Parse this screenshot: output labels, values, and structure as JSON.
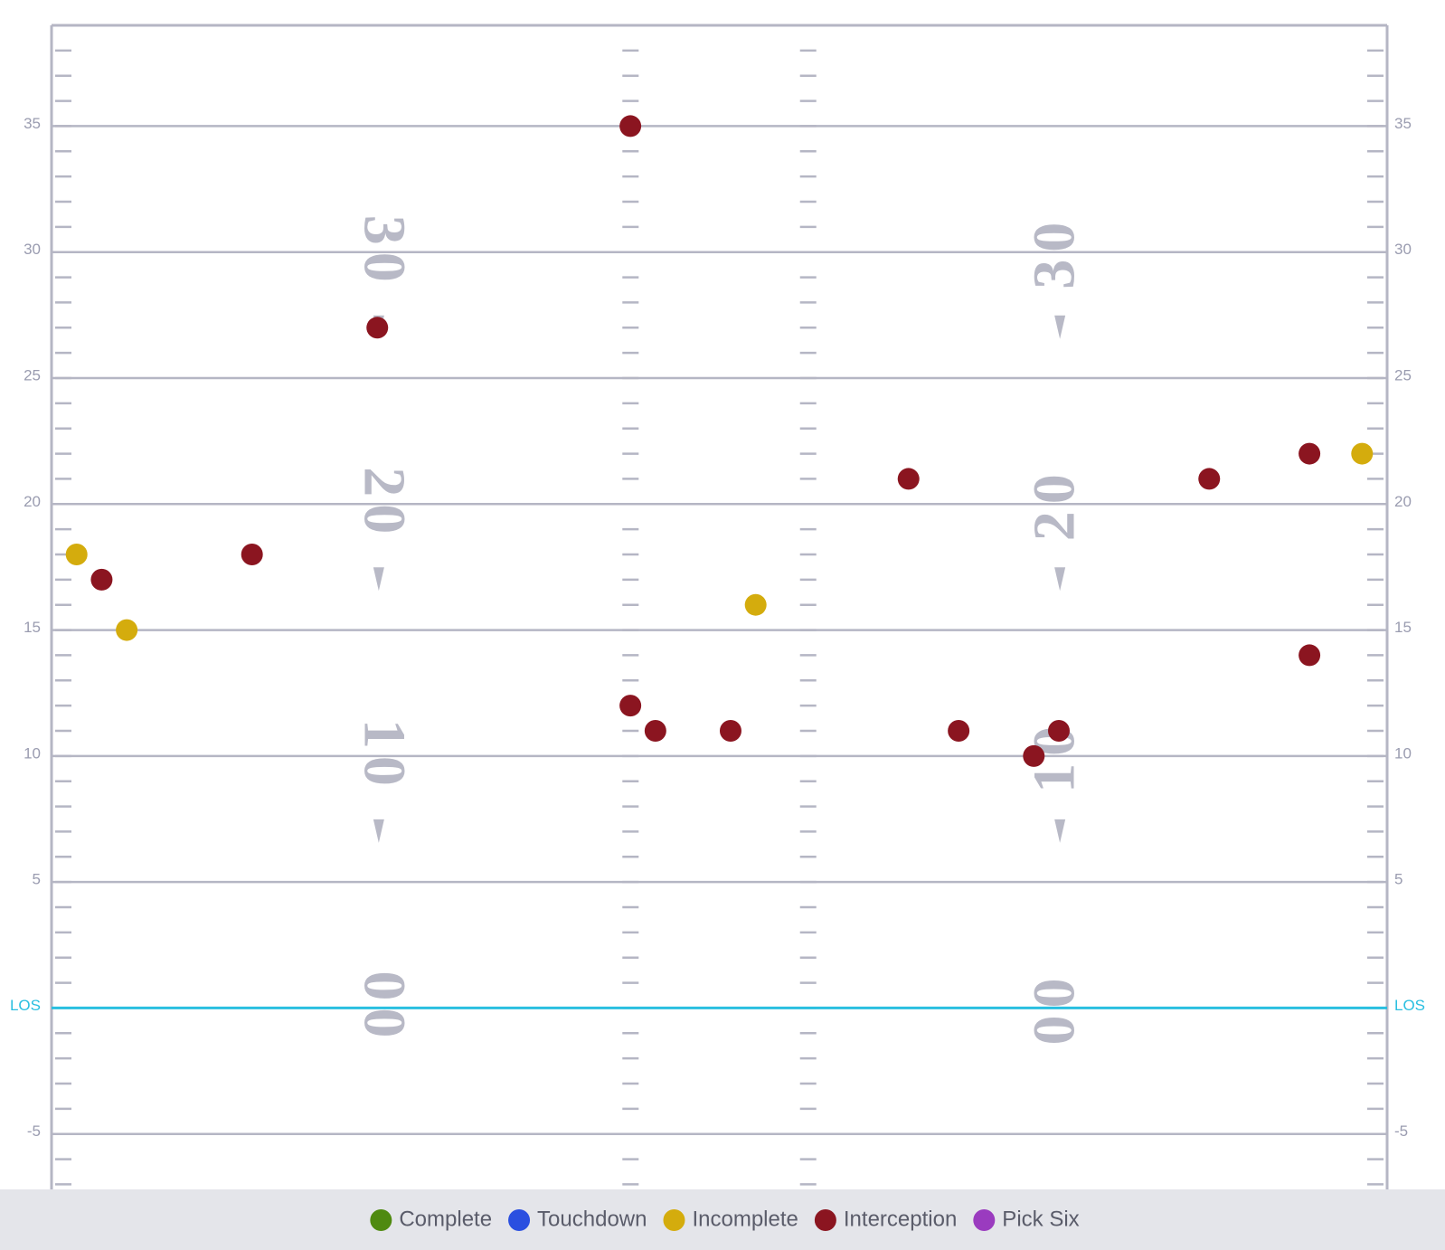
{
  "chart_data": {
    "type": "scatter",
    "xlim": [
      0,
      53.3
    ],
    "ylim": [
      -7.2,
      39
    ],
    "yticks": [
      -5,
      {
        "value": 0,
        "label": "LOS"
      },
      5,
      10,
      15,
      20,
      25,
      30,
      35
    ],
    "field_numbers": [
      30,
      20,
      10,
      {
        "value": 0,
        "label": "00"
      }
    ],
    "grid": true,
    "los_color": "#29bfe0",
    "series": [
      {
        "name": "Complete",
        "color": "#4f8a10",
        "x": [],
        "values": []
      },
      {
        "name": "Touchdown",
        "color": "#2a4fe0",
        "x": [],
        "values": []
      },
      {
        "name": "Incomplete",
        "color": "#d4ac0d",
        "x": [
          1.0,
          3.0,
          28.1,
          52.3
        ],
        "values": [
          18,
          15,
          16,
          22
        ]
      },
      {
        "name": "Interception",
        "color": "#8b1520",
        "x": [
          23.1,
          13.0,
          34.2,
          46.2,
          50.2,
          2.0,
          8.0,
          50.2,
          23.1,
          24.1,
          27.1,
          36.2,
          40.2,
          39.2
        ],
        "values": [
          35,
          27,
          21,
          21,
          22,
          17,
          18,
          14,
          12,
          11,
          11,
          11,
          11,
          10
        ]
      },
      {
        "name": "Pick Six",
        "color": "#9a3bbf",
        "x": [],
        "values": []
      }
    ]
  }
}
